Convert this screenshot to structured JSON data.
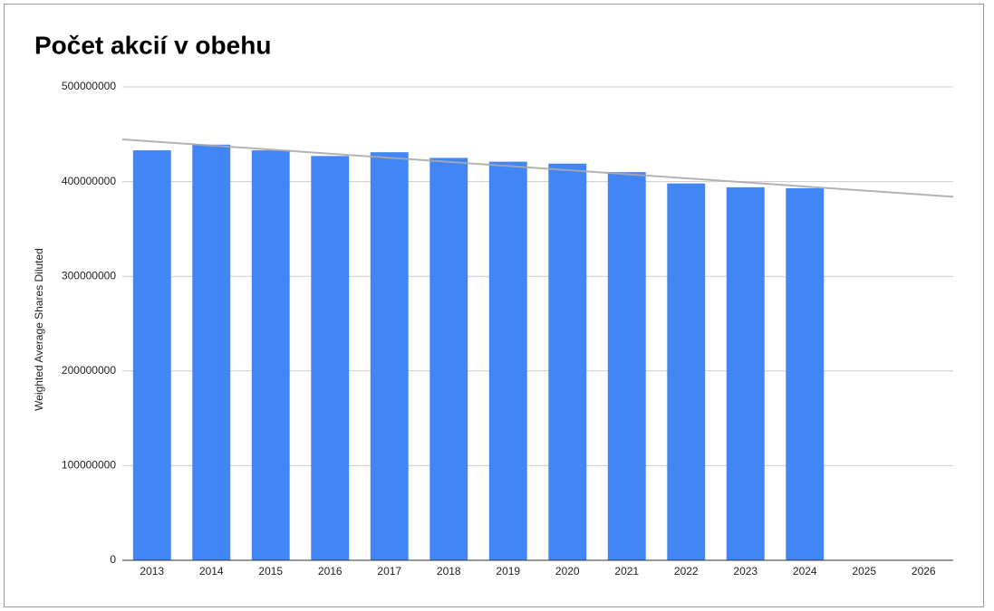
{
  "chart_data": {
    "type": "bar",
    "title": "Počet akcií v obehu",
    "y_label": "Weighted Average Shares Diluted",
    "categories": [
      "2013",
      "2014",
      "2015",
      "2016",
      "2017",
      "2018",
      "2019",
      "2020",
      "2021",
      "2022",
      "2023",
      "2024",
      "2025",
      "2026"
    ],
    "values": [
      433000000,
      439000000,
      433000000,
      427000000,
      431000000,
      425000000,
      421000000,
      419000000,
      410000000,
      398000000,
      394000000,
      393000000,
      null,
      null
    ],
    "color": "#4285f4",
    "ylim": [
      0,
      500000000
    ],
    "yticks": [
      0,
      100000000,
      200000000,
      300000000,
      400000000,
      500000000
    ],
    "grid": true,
    "trendline": {
      "color": "#aaaaaa",
      "start": 444600000,
      "end": 384000000
    }
  }
}
